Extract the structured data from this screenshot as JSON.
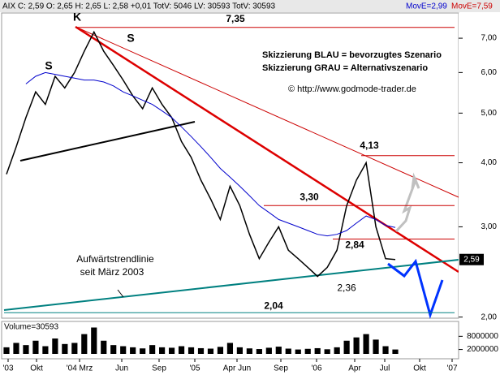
{
  "chart_data": {
    "type": "line",
    "header": "AIX C: 2,59 O: 2,65 H: 2,65 L: 2,58 +0,01 TotV: 5046 LV: 30593 TotV: 30593",
    "header_ma1": "MovE=2,99",
    "header_ma2": "MovE=7,59",
    "log_scale": true,
    "ylim": [
      1.99,
      7.84
    ],
    "yticks": [
      {
        "value": 2,
        "label": "2,00"
      },
      {
        "value": 3,
        "label": "3,00"
      },
      {
        "value": 4,
        "label": "4,00"
      },
      {
        "value": 5,
        "label": "5,00"
      },
      {
        "value": 6,
        "label": "6,00"
      },
      {
        "value": 7,
        "label": "7,00"
      }
    ],
    "x_labels": [
      "'03",
      "Okt",
      "'04 Mrz",
      "Jun",
      "Sep",
      "'05",
      "Apr Jun",
      "Sep",
      "'06",
      "Apr",
      "Jul",
      "Okt",
      "'07"
    ],
    "series": [
      {
        "color": "#000000",
        "values": [
          3.8,
          4.3,
          4.9,
          5.5,
          5.2,
          5.9,
          5.6,
          6.0,
          6.6,
          7.2,
          6.6,
          6.2,
          5.8,
          5.4,
          5.1,
          5.6,
          5.2,
          4.9,
          4.4,
          4.1,
          3.7,
          3.4,
          3.1,
          3.6,
          3.3,
          2.9,
          2.6,
          2.8,
          3.0,
          2.7,
          2.6,
          2.5,
          2.4,
          2.5,
          2.7,
          3.3,
          3.7,
          4.0,
          3.0,
          2.6,
          2.59
        ]
      },
      {
        "color": "#0000cc",
        "values": [
          null,
          null,
          5.7,
          5.9,
          6.0,
          5.95,
          5.9,
          5.85,
          5.8,
          5.8,
          5.75,
          5.65,
          5.5,
          5.4,
          5.3,
          5.2,
          5.05,
          4.9,
          4.7,
          4.5,
          4.3,
          4.1,
          3.9,
          3.75,
          3.6,
          3.45,
          3.3,
          3.2,
          3.1,
          3.05,
          3.0,
          2.95,
          2.9,
          2.88,
          2.9,
          2.95,
          3.05,
          3.15,
          3.1,
          3.02,
          2.99
        ]
      }
    ],
    "last_price": {
      "value": 2.59,
      "label": "2,59"
    },
    "levels": [
      {
        "value": 7.35,
        "label": "7,35"
      },
      {
        "value": 4.13,
        "label": "4,13"
      },
      {
        "value": 3.3,
        "label": "3,30"
      },
      {
        "value": 2.84,
        "label": "2,84"
      },
      {
        "value": 2.36,
        "label": "2,36"
      },
      {
        "value": 2.04,
        "label": "2,04"
      }
    ],
    "annotations": [
      "K",
      "S",
      "S",
      "Aufwärtstrendlinie",
      "seit März 2003"
    ],
    "box_lines": [
      "Skizzierung BLAU = bevorzugtes Szenario",
      "Skizzierung GRAU = Alternativszenario"
    ],
    "copyright": "© http://www.godmode-trader.de",
    "volume": {
      "label": "Volume=30593",
      "ylim": [
        0,
        14400000
      ],
      "yticks": [
        2000000,
        8000000
      ],
      "values": [
        3000000,
        5000000,
        4000000,
        6000000,
        3500000,
        7000000,
        4500000,
        5000000,
        9000000,
        12000000,
        6000000,
        4000000,
        3500000,
        3000000,
        2500000,
        4000000,
        3000000,
        2800000,
        3500000,
        3000000,
        2600000,
        2400000,
        3200000,
        5000000,
        3000000,
        2500000,
        2200000,
        2800000,
        3300000,
        2400000,
        2000000,
        2300000,
        2600000,
        2100000,
        3000000,
        6000000,
        7500000,
        9000000,
        6500000,
        3500000,
        2000000
      ]
    }
  }
}
